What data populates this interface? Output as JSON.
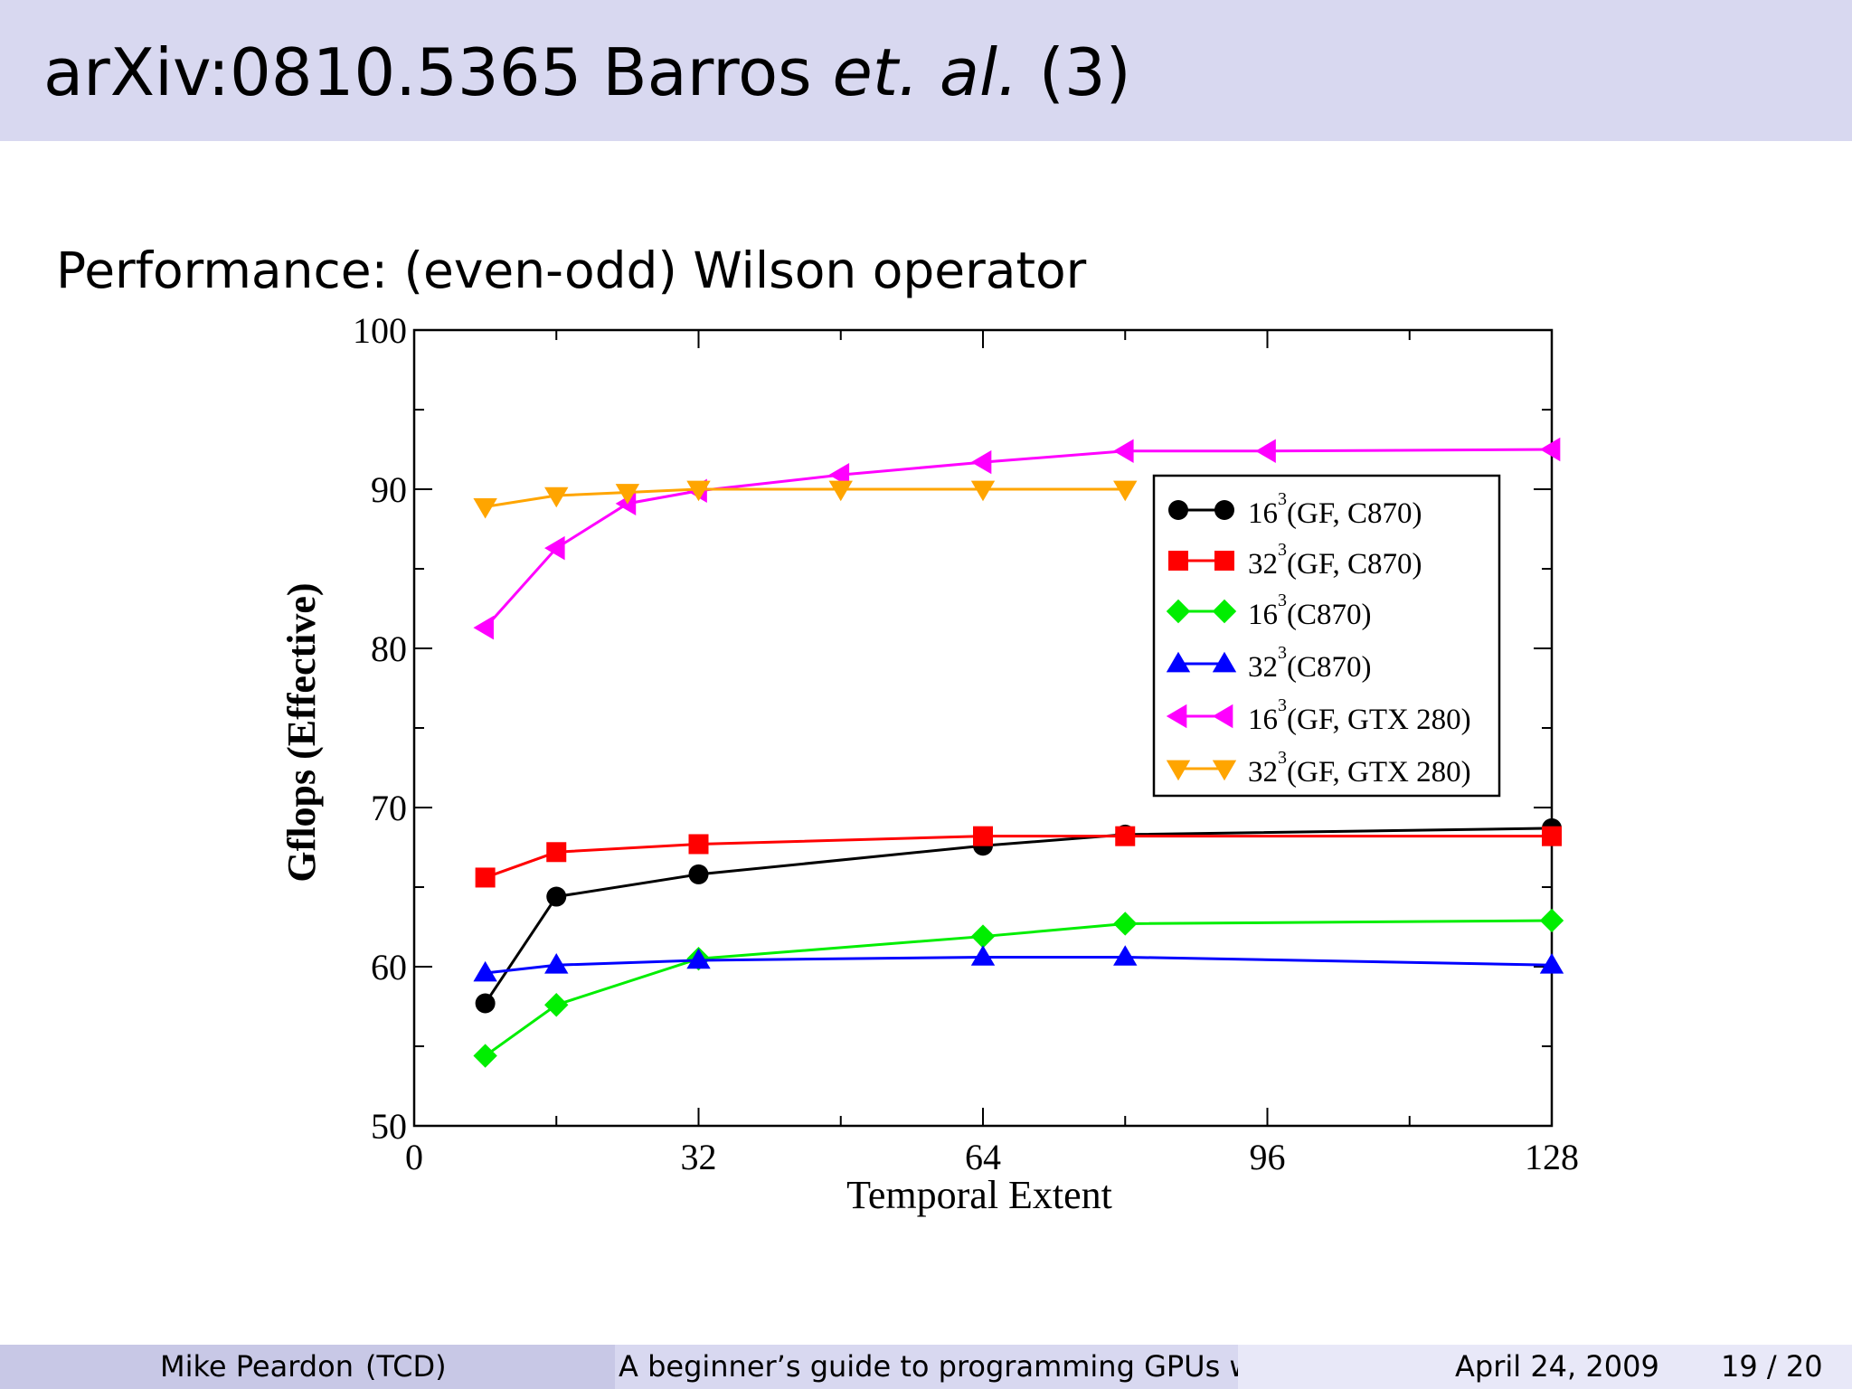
{
  "slide": {
    "title_main": "arXiv:0810.5365 Barros ",
    "title_italic": "et. al.",
    "title_end": " (3)",
    "subtitle": "Performance: (even-odd) Wilson operator"
  },
  "footer": {
    "author": "Mike Peardon",
    "institute": "(TCD)",
    "talk_title": "A beginner’s guide to programming GPUs wit",
    "date": "April 24, 2009",
    "page": "19 / 20"
  },
  "chart_data": {
    "type": "line",
    "xlabel": "Temporal Extent",
    "ylabel": "Gflops (Effective)",
    "xlim": [
      0,
      128
    ],
    "ylim": [
      50,
      100
    ],
    "xticks": [
      0,
      32,
      64,
      96,
      128
    ],
    "yticks": [
      50,
      60,
      70,
      80,
      90,
      100
    ],
    "legend_position": "upper-right",
    "grid": false,
    "series": [
      {
        "name": "16³(GF, C870)",
        "base": "16",
        "sup": "3",
        "rest": "(GF, C870)",
        "color": "#000000",
        "marker": "circle",
        "x": [
          8,
          16,
          32,
          64,
          80,
          128
        ],
        "y": [
          57.7,
          64.4,
          65.8,
          67.6,
          68.3,
          68.7
        ]
      },
      {
        "name": "32³(GF, C870)",
        "base": "32",
        "sup": "3",
        "rest": "(GF, C870)",
        "color": "#ff0000",
        "marker": "square",
        "x": [
          8,
          16,
          32,
          64,
          80,
          128
        ],
        "y": [
          65.6,
          67.2,
          67.7,
          68.2,
          68.2,
          68.2
        ]
      },
      {
        "name": "16³(C870)",
        "base": "16",
        "sup": "3",
        "rest": "(C870)",
        "color": "#00ee00",
        "marker": "diamond",
        "x": [
          8,
          16,
          32,
          64,
          80,
          128
        ],
        "y": [
          54.4,
          57.6,
          60.5,
          61.9,
          62.7,
          62.9
        ]
      },
      {
        "name": "32³(C870)",
        "base": "32",
        "sup": "3",
        "rest": "(C870)",
        "color": "#0000ff",
        "marker": "triangle-up",
        "x": [
          8,
          16,
          32,
          64,
          80,
          128
        ],
        "y": [
          59.6,
          60.1,
          60.4,
          60.6,
          60.6,
          60.1
        ]
      },
      {
        "name": "16³(GF, GTX 280)",
        "base": "16",
        "sup": "3",
        "rest": "(GF, GTX 280)",
        "color": "#ff00ff",
        "marker": "triangle-left",
        "x": [
          8,
          16,
          24,
          32,
          48,
          64,
          80,
          96,
          128
        ],
        "y": [
          81.3,
          86.3,
          89.1,
          89.9,
          90.9,
          91.7,
          92.4,
          92.4,
          92.5
        ]
      },
      {
        "name": "32³(GF, GTX 280)",
        "base": "32",
        "sup": "3",
        "rest": "(GF, GTX 280)",
        "color": "#ffa500",
        "marker": "triangle-down",
        "x": [
          8,
          16,
          24,
          32,
          48,
          64,
          80
        ],
        "y": [
          88.9,
          89.6,
          89.8,
          90.0,
          90.0,
          90.0,
          90.0
        ]
      }
    ]
  }
}
